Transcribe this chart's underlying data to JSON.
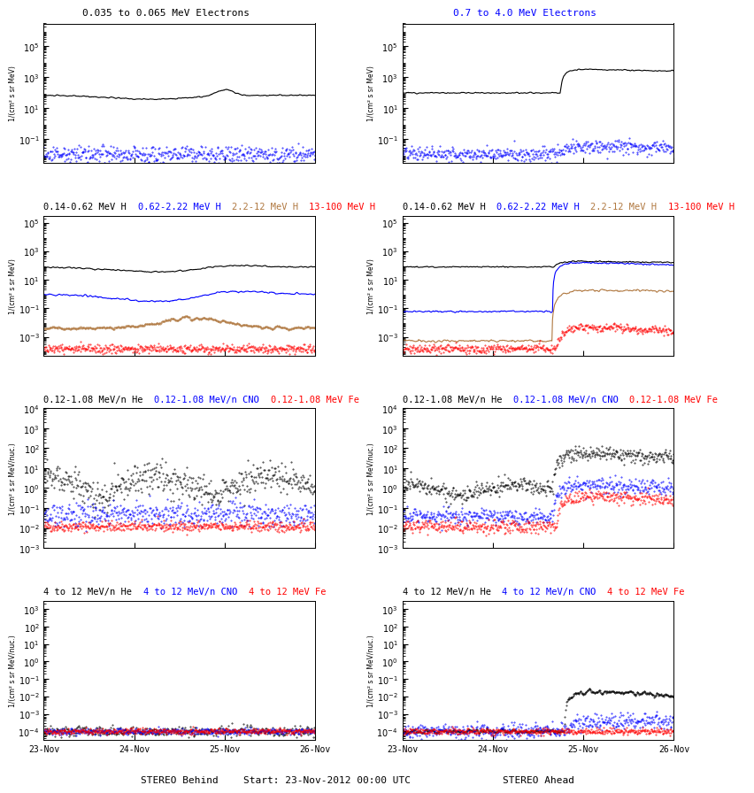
{
  "fig_width": 8.0,
  "fig_height": 9.0,
  "background_color": "#ffffff",
  "xtick_positions": [
    0,
    24,
    48,
    72
  ],
  "xtick_labels": [
    "23-Nov",
    "24-Nov",
    "25-Nov",
    "26-Nov"
  ],
  "panels": [
    {
      "row": 0,
      "col": 0,
      "titles": [
        {
          "text": "0.035 to 0.065 MeV Electrons",
          "color": "black"
        },
        {
          "text": "0.7 to 4.0 MeV Electrons",
          "color": "blue"
        }
      ],
      "ylabel": "1/(cm² s sr MeV)",
      "ylim": [
        0.003,
        3000000.0
      ],
      "colors": [
        "black",
        "blue"
      ],
      "styles": [
        "line",
        "dot"
      ]
    },
    {
      "row": 0,
      "col": 1,
      "titles": [
        {
          "text": "0.7 to 4.0 MeV Electrons",
          "color": "blue"
        }
      ],
      "ylabel": "1/(cm² s sr MeV)",
      "ylim": [
        0.003,
        3000000.0
      ],
      "colors": [
        "black",
        "blue"
      ],
      "styles": [
        "line",
        "dot"
      ]
    },
    {
      "row": 1,
      "col": 0,
      "titles": [
        {
          "text": "0.14-0.62 MeV H",
          "color": "black"
        },
        {
          "text": "0.62-2.22 MeV H",
          "color": "blue"
        },
        {
          "text": "2.2-12 MeV H",
          "color": "#b07840"
        },
        {
          "text": "13-100 MeV H",
          "color": "red"
        }
      ],
      "ylabel": "1/(cm² s sr MeV)",
      "ylim": [
        5e-05,
        300000.0
      ],
      "colors": [
        "black",
        "blue",
        "#b07840",
        "red"
      ],
      "styles": [
        "line",
        "line",
        "dot",
        "dot"
      ]
    },
    {
      "row": 1,
      "col": 1,
      "titles": [
        {
          "text": "0.14-0.62 MeV H",
          "color": "black"
        },
        {
          "text": "0.62-2.22 MeV H",
          "color": "blue"
        },
        {
          "text": "2.2-12 MeV H",
          "color": "#b07840"
        },
        {
          "text": "13-100 MeV H",
          "color": "red"
        }
      ],
      "ylabel": "1/(cm² s sr MeV)",
      "ylim": [
        5e-05,
        300000.0
      ],
      "colors": [
        "black",
        "blue",
        "#b07840",
        "red"
      ],
      "styles": [
        "line",
        "line",
        "line",
        "dot"
      ]
    },
    {
      "row": 2,
      "col": 0,
      "titles": [
        {
          "text": "0.12-1.08 MeV/n He",
          "color": "black"
        },
        {
          "text": "0.12-1.08 MeV/n CNO",
          "color": "blue"
        },
        {
          "text": "0.12-1.08 MeV Fe",
          "color": "red"
        }
      ],
      "ylabel": "1/(cm² s sr MeV/nuc.)",
      "ylim": [
        0.001,
        10000.0
      ],
      "colors": [
        "black",
        "blue",
        "red"
      ],
      "styles": [
        "dot",
        "dot",
        "dot"
      ]
    },
    {
      "row": 2,
      "col": 1,
      "titles": [
        {
          "text": "0.12-1.08 MeV/n He",
          "color": "black"
        },
        {
          "text": "0.12-1.08 MeV/n CNO",
          "color": "blue"
        },
        {
          "text": "0.12-1.08 MeV Fe",
          "color": "red"
        }
      ],
      "ylabel": "1/(cm² s sr MeV/nuc.)",
      "ylim": [
        0.001,
        10000.0
      ],
      "colors": [
        "black",
        "blue",
        "red"
      ],
      "styles": [
        "dot",
        "dot",
        "dot"
      ]
    },
    {
      "row": 3,
      "col": 0,
      "titles": [
        {
          "text": "4 to 12 MeV/n He",
          "color": "black"
        },
        {
          "text": "4 to 12 MeV/n CNO",
          "color": "blue"
        },
        {
          "text": "4 to 12 MeV Fe",
          "color": "red"
        }
      ],
      "ylabel": "1/(cm² s sr MeV/nuc.)",
      "ylim": [
        3e-05,
        3000.0
      ],
      "colors": [
        "black",
        "blue",
        "red"
      ],
      "styles": [
        "dot",
        "dot",
        "dot"
      ]
    },
    {
      "row": 3,
      "col": 1,
      "titles": [
        {
          "text": "4 to 12 MeV/n He",
          "color": "black"
        },
        {
          "text": "4 to 12 MeV/n CNO",
          "color": "blue"
        },
        {
          "text": "4 to 12 MeV Fe",
          "color": "red"
        }
      ],
      "ylabel": "1/(cm² s sr MeV/nuc.)",
      "ylim": [
        3e-05,
        3000.0
      ],
      "colors": [
        "black",
        "blue",
        "red"
      ],
      "styles": [
        "dot",
        "dot",
        "dot"
      ]
    }
  ],
  "row0_title_left": {
    "text": "0.035 to 0.065 MeV Electrons",
    "color": "black"
  },
  "row0_title_right": {
    "text": "0.7 to 4.0 MeV Electrons",
    "color": "blue"
  },
  "row1_titles_left": [
    {
      "text": "0.14-0.62 MeV H",
      "color": "black"
    },
    {
      "text": "0.62-2.22 MeV H",
      "color": "blue"
    },
    {
      "text": "2.2-12 MeV H",
      "color": "#b07840"
    },
    {
      "text": "13-100 MeV H",
      "color": "red"
    }
  ],
  "row2_titles_left": [
    {
      "text": "0.12-1.08 MeV/n He",
      "color": "black"
    },
    {
      "text": "0.12-1.08 MeV/n CNO",
      "color": "blue"
    },
    {
      "text": "0.12-1.08 MeV Fe",
      "color": "red"
    }
  ],
  "row3_titles_left": [
    {
      "text": "4 to 12 MeV/n He",
      "color": "black"
    },
    {
      "text": "4 to 12 MeV/n CNO",
      "color": "blue"
    },
    {
      "text": "4 to 12 MeV Fe",
      "color": "red"
    }
  ],
  "xlabel_left": "STEREO Behind",
  "xlabel_center": "Start: 23-Nov-2012 00:00 UTC",
  "xlabel_right": "STEREO Ahead"
}
